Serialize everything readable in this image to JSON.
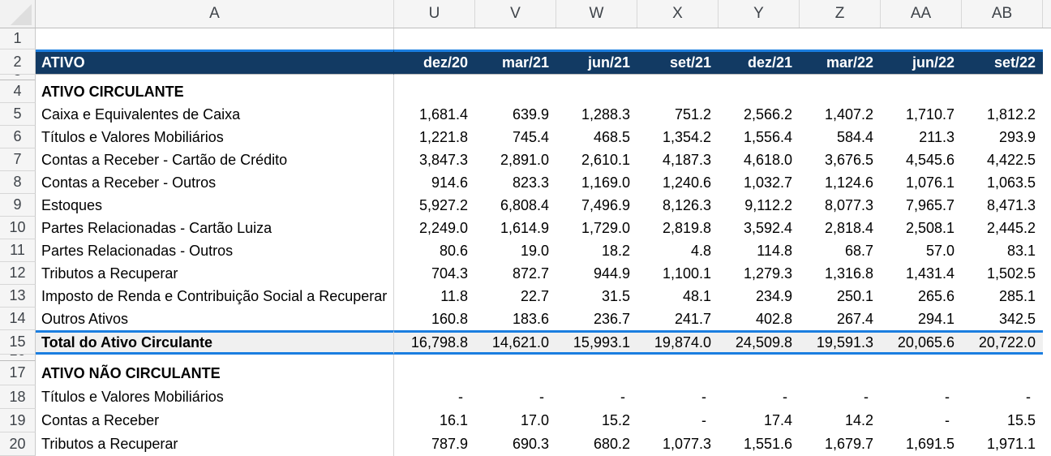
{
  "sheet": {
    "col_headers": [
      "A",
      "U",
      "V",
      "W",
      "X",
      "Y",
      "Z",
      "AA",
      "AB"
    ],
    "colors": {
      "header_fill": "#123A63",
      "accent_border": "#1B7EE0",
      "total_fill": "#F0F0F0"
    },
    "rows": [
      {
        "num": "1",
        "type": "empty",
        "label": "",
        "values": [
          "",
          "",
          "",
          "",
          "",
          "",
          "",
          ""
        ]
      },
      {
        "num": "2",
        "type": "header",
        "label": "ATIVO",
        "values": [
          "dez/20",
          "mar/21",
          "jun/21",
          "set/21",
          "dez/21",
          "mar/22",
          "jun/22",
          "set/22"
        ]
      },
      {
        "num": "3",
        "type": "hidden"
      },
      {
        "num": "4",
        "type": "section",
        "label": "ATIVO CIRCULANTE",
        "values": [
          "",
          "",
          "",
          "",
          "",
          "",
          "",
          ""
        ]
      },
      {
        "num": "5",
        "type": "data",
        "label": "Caixa e Equivalentes de Caixa",
        "values": [
          "1,681.4",
          "639.9",
          "1,288.3",
          "751.2",
          "2,566.2",
          "1,407.2",
          "1,710.7",
          "1,812.2"
        ]
      },
      {
        "num": "6",
        "type": "data",
        "label": "Títulos e Valores Mobiliários",
        "values": [
          "1,221.8",
          "745.4",
          "468.5",
          "1,354.2",
          "1,556.4",
          "584.4",
          "211.3",
          "293.9"
        ]
      },
      {
        "num": "7",
        "type": "data",
        "label": "Contas a Receber - Cartão de Crédito",
        "values": [
          "3,847.3",
          "2,891.0",
          "2,610.1",
          "4,187.3",
          "4,618.0",
          "3,676.5",
          "4,545.6",
          "4,422.5"
        ]
      },
      {
        "num": "8",
        "type": "data",
        "label": "Contas a Receber - Outros",
        "values": [
          "914.6",
          "823.3",
          "1,169.0",
          "1,240.6",
          "1,032.7",
          "1,124.6",
          "1,076.1",
          "1,063.5"
        ]
      },
      {
        "num": "9",
        "type": "data",
        "label": "Estoques",
        "values": [
          "5,927.2",
          "6,808.4",
          "7,496.9",
          "8,126.3",
          "9,112.2",
          "8,077.3",
          "7,965.7",
          "8,471.3"
        ]
      },
      {
        "num": "10",
        "type": "data",
        "label": "Partes Relacionadas - Cartão Luiza",
        "values": [
          "2,249.0",
          "1,614.9",
          "1,729.0",
          "2,819.8",
          "3,592.4",
          "2,818.4",
          "2,508.1",
          "2,445.2"
        ]
      },
      {
        "num": "11",
        "type": "data",
        "label": "Partes Relacionadas - Outros",
        "values": [
          "80.6",
          "19.0",
          "18.2",
          "4.8",
          "114.8",
          "68.7",
          "57.0",
          "83.1"
        ]
      },
      {
        "num": "12",
        "type": "data",
        "label": "Tributos a Recuperar",
        "values": [
          "704.3",
          "872.7",
          "944.9",
          "1,100.1",
          "1,279.3",
          "1,316.8",
          "1,431.4",
          "1,502.5"
        ]
      },
      {
        "num": "13",
        "type": "data",
        "label": "Imposto de Renda e Contribuição Social a Recuperar",
        "values": [
          "11.8",
          "22.7",
          "31.5",
          "48.1",
          "234.9",
          "250.1",
          "265.6",
          "285.1"
        ]
      },
      {
        "num": "14",
        "type": "data",
        "label": "Outros Ativos",
        "values": [
          "160.8",
          "183.6",
          "236.7",
          "241.7",
          "402.8",
          "267.4",
          "294.1",
          "342.5"
        ]
      },
      {
        "num": "15",
        "type": "total",
        "label": "Total do Ativo Circulante",
        "values": [
          "16,798.8",
          "14,621.0",
          "15,993.1",
          "19,874.0",
          "24,509.8",
          "19,591.3",
          "20,065.6",
          "20,722.0"
        ]
      },
      {
        "num": "16",
        "type": "hidden"
      },
      {
        "num": "17",
        "type": "section",
        "label": "ATIVO NÃO CIRCULANTE",
        "values": [
          "",
          "",
          "",
          "",
          "",
          "",
          "",
          ""
        ]
      },
      {
        "num": "18",
        "type": "data",
        "label": "Títulos e Valores Mobiliários",
        "values": [
          "-",
          "-",
          "-",
          "-",
          "-",
          "-",
          "-",
          "-"
        ]
      },
      {
        "num": "19",
        "type": "data",
        "label": "Contas a Receber",
        "values": [
          "16.1",
          "17.0",
          "15.2",
          "-",
          "17.4",
          "14.2",
          "-",
          "15.5"
        ]
      },
      {
        "num": "20",
        "type": "data",
        "label": "Tributos a Recuperar",
        "values": [
          "787.9",
          "690.3",
          "680.2",
          "1,077.3",
          "1,551.6",
          "1,679.7",
          "1,691.5",
          "1,971.1"
        ]
      }
    ]
  }
}
